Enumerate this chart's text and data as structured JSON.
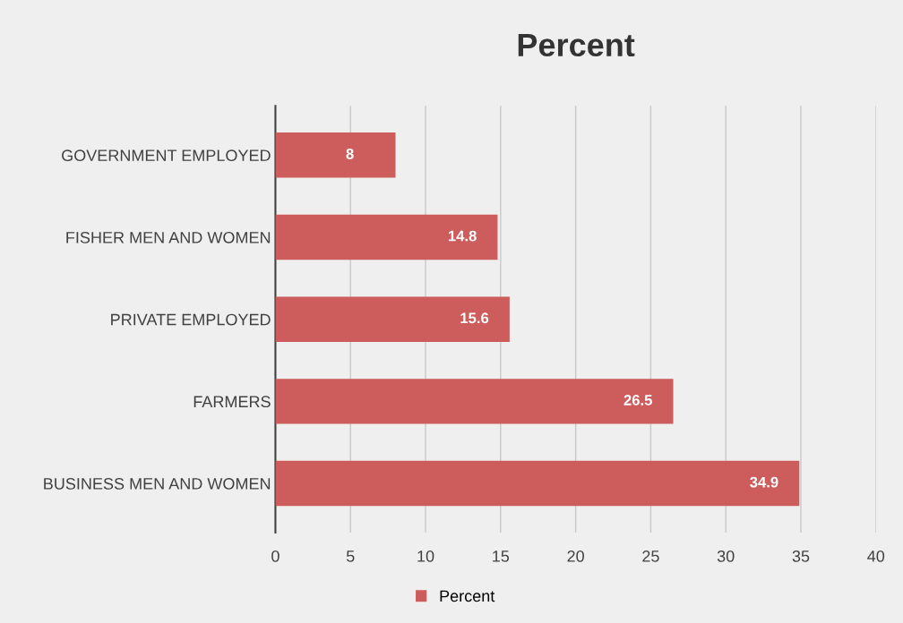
{
  "chart_data": {
    "type": "bar",
    "orientation": "horizontal",
    "title": "Percent",
    "categories": [
      "GOVERNMENT EMPLOYED",
      "FISHER MEN AND WOMEN",
      "PRIVATE EMPLOYED",
      "FARMERS",
      "BUSINESS MEN AND WOMEN"
    ],
    "series": [
      {
        "name": "Percent",
        "color": "#cd5c5c",
        "values": [
          8,
          14.8,
          15.6,
          26.5,
          34.9
        ]
      }
    ],
    "xlim": [
      0,
      40
    ],
    "xticks": [
      0,
      5,
      10,
      15,
      20,
      25,
      30,
      35,
      40
    ],
    "grid": "x",
    "legend": "bottom",
    "data_labels": true
  }
}
